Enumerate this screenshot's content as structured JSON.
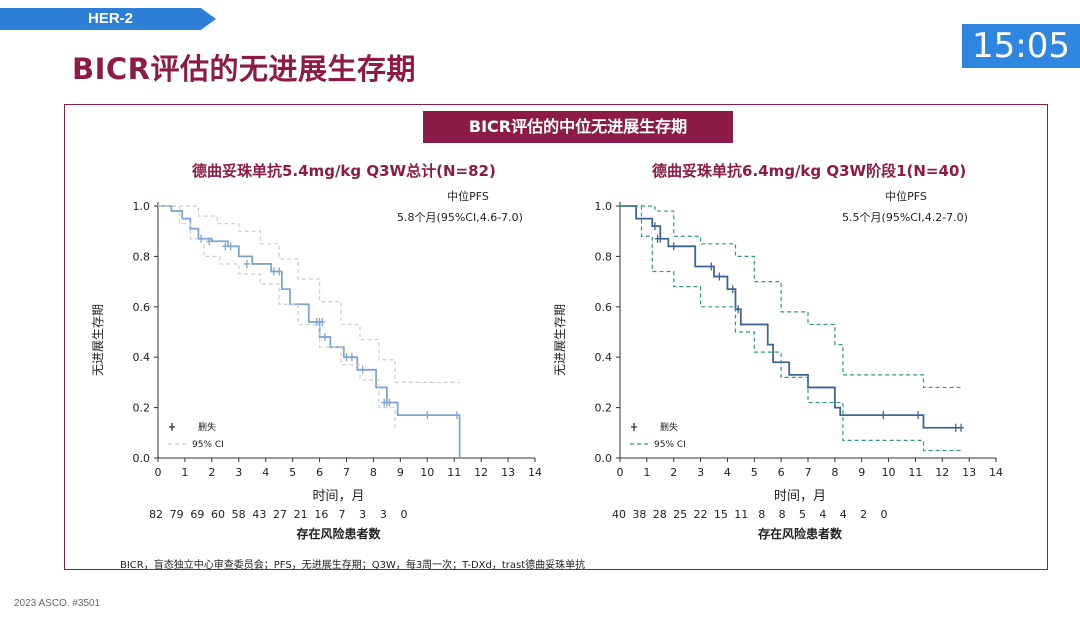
{
  "header": {
    "tag": "HER-2",
    "title": "BICR评估的无进展生存期",
    "clock": "15:05"
  },
  "panel": {
    "banner": "BICR评估的中位无进展生存期",
    "footnote": "BICR，盲态独立中心审查委员会；PFS，无进展生存期；Q3W，每3周一次；T-DXd，trast德曲妥珠单抗"
  },
  "source": "2023 ASCO. #3501",
  "colors": {
    "accent": "#8c1c47",
    "clock": "#2e86de",
    "tag": "#2e7fd6"
  },
  "chart_data": [
    {
      "type": "line",
      "title": "德曲妥珠单抗5.4mg/kg Q3W总计(N=82)",
      "annotation": {
        "label": "中位PFS",
        "value": "5.8个月(95%CI,4.6-7.0)"
      },
      "xlabel": "时间，月",
      "ylabel": "无进展生存期",
      "xlim": [
        0,
        14
      ],
      "ylim": [
        0,
        1
      ],
      "xticks": [
        0,
        1,
        2,
        3,
        4,
        5,
        6,
        7,
        8,
        9,
        10,
        11,
        12,
        13,
        14
      ],
      "yticks": [
        "0.0",
        "0.2",
        "0.4",
        "0.6",
        "0.8",
        "1.0"
      ],
      "legend": {
        "position": "bottom-left",
        "items": [
          "删失",
          "95% CI"
        ]
      },
      "style": {
        "main": "#7fa6d3",
        "ci": "#c8cdd6",
        "ci_dash": "4,3"
      },
      "series": [
        {
          "role": "estimate",
          "x": [
            0,
            0.5,
            0.9,
            1.2,
            1.5,
            2.0,
            2.6,
            3.0,
            3.5,
            4.2,
            4.6,
            4.9,
            5.6,
            6.0,
            6.4,
            6.9,
            7.4,
            8.1,
            8.5,
            8.9,
            11.2,
            11.2
          ],
          "y": [
            1.0,
            0.98,
            0.95,
            0.91,
            0.87,
            0.86,
            0.84,
            0.8,
            0.77,
            0.74,
            0.67,
            0.61,
            0.54,
            0.48,
            0.44,
            0.4,
            0.35,
            0.28,
            0.22,
            0.17,
            0.17,
            0.0
          ]
        },
        {
          "role": "ci_upper",
          "x": [
            0,
            0.8,
            1.5,
            2.2,
            3.0,
            3.8,
            4.5,
            5.2,
            6.0,
            6.8,
            7.5,
            8.2,
            8.8,
            11.2
          ],
          "y": [
            1.0,
            1.0,
            0.96,
            0.93,
            0.9,
            0.85,
            0.79,
            0.71,
            0.62,
            0.53,
            0.47,
            0.39,
            0.3,
            0.3
          ]
        },
        {
          "role": "ci_lower",
          "x": [
            0,
            0.8,
            1.2,
            1.7,
            2.3,
            3.0,
            3.8,
            4.5,
            5.2,
            6.0,
            6.8,
            7.5,
            8.2,
            8.8
          ],
          "y": [
            1.0,
            0.93,
            0.87,
            0.8,
            0.77,
            0.73,
            0.69,
            0.61,
            0.53,
            0.44,
            0.37,
            0.31,
            0.2,
            0.11
          ]
        }
      ],
      "censored": {
        "x": [
          1.6,
          1.9,
          2.5,
          2.7,
          3.3,
          4.3,
          4.5,
          5.9,
          6.0,
          6.1,
          6.2,
          7.0,
          7.2,
          7.6,
          8.4,
          8.5,
          8.6,
          10.0,
          11.1
        ],
        "y": [
          0.87,
          0.86,
          0.84,
          0.84,
          0.77,
          0.74,
          0.74,
          0.54,
          0.54,
          0.54,
          0.48,
          0.4,
          0.4,
          0.35,
          0.22,
          0.22,
          0.22,
          0.17,
          0.17
        ]
      },
      "at_risk": {
        "label": "存在风险患者数",
        "values": [
          "82",
          "79",
          "69",
          "60",
          "58",
          "43",
          "27",
          "21",
          "16",
          "7",
          "3",
          "3",
          "0"
        ]
      }
    },
    {
      "type": "line",
      "title": "德曲妥珠单抗6.4mg/kg Q3W阶段1(N=40)",
      "annotation": {
        "label": "中位PFS",
        "value": "5.5个月(95%CI,4.2-7.0)"
      },
      "xlabel": "时间，月",
      "ylabel": "无进展生存期",
      "xlim": [
        0,
        14
      ],
      "ylim": [
        0,
        1
      ],
      "xticks": [
        0,
        1,
        2,
        3,
        4,
        5,
        6,
        7,
        8,
        9,
        10,
        11,
        12,
        13,
        14
      ],
      "yticks": [
        "0.0",
        "0.2",
        "0.4",
        "0.6",
        "0.8",
        "1.0"
      ],
      "legend": {
        "position": "bottom-left",
        "items": [
          "删失",
          "95% CI"
        ]
      },
      "style": {
        "main": "#3f6591",
        "ci": "#2e9b82",
        "ci_dash": "4,3"
      },
      "series": [
        {
          "role": "estimate",
          "x": [
            0,
            0.6,
            1.2,
            1.5,
            1.8,
            2.8,
            3.5,
            4.0,
            4.3,
            4.5,
            5.5,
            5.7,
            6.3,
            7.0,
            8.0,
            8.2,
            11.3,
            12.7
          ],
          "y": [
            1.0,
            0.95,
            0.92,
            0.87,
            0.84,
            0.76,
            0.72,
            0.67,
            0.59,
            0.53,
            0.45,
            0.38,
            0.33,
            0.28,
            0.2,
            0.17,
            0.12,
            0.12
          ]
        },
        {
          "role": "ci_upper",
          "x": [
            0,
            1.3,
            2.0,
            3.0,
            4.3,
            5.0,
            6.0,
            7.0,
            8.0,
            8.3,
            11.3,
            12.7
          ],
          "y": [
            1.0,
            0.98,
            0.88,
            0.85,
            0.8,
            0.7,
            0.58,
            0.53,
            0.45,
            0.33,
            0.28,
            0.28
          ]
        },
        {
          "role": "ci_lower",
          "x": [
            0,
            0.8,
            1.2,
            2.0,
            3.0,
            4.3,
            5.0,
            6.0,
            7.0,
            8.3,
            11.3,
            12.7
          ],
          "y": [
            1.0,
            0.88,
            0.74,
            0.68,
            0.6,
            0.5,
            0.42,
            0.32,
            0.22,
            0.07,
            0.03,
            0.03
          ]
        }
      ],
      "censored": {
        "x": [
          1.3,
          1.4,
          1.5,
          2.0,
          3.4,
          3.7,
          4.2,
          4.4,
          9.8,
          11.1,
          12.5,
          12.7
        ],
        "y": [
          0.92,
          0.87,
          0.87,
          0.84,
          0.76,
          0.72,
          0.67,
          0.59,
          0.17,
          0.17,
          0.12,
          0.12
        ]
      },
      "at_risk": {
        "label": "存在风险患者数",
        "values": [
          "40",
          "38",
          "28",
          "25",
          "22",
          "15",
          "11",
          "8",
          "8",
          "5",
          "4",
          "4",
          "2",
          "0"
        ]
      }
    }
  ]
}
